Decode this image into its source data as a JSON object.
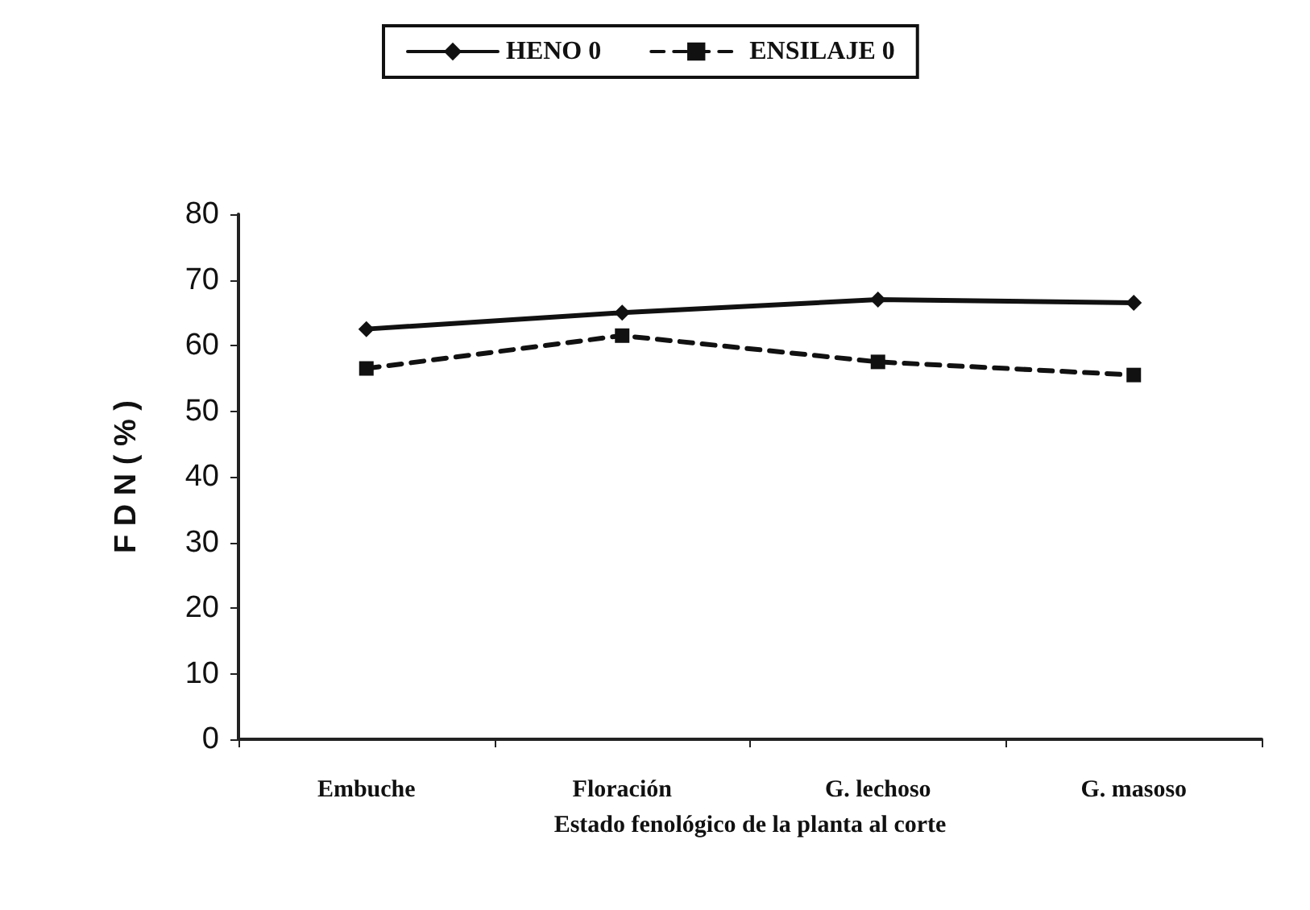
{
  "chart_data": {
    "type": "line",
    "xlabel": "Estado fenológico de la planta al corte",
    "ylabel": "F D N ( % )",
    "categories": [
      "Embuche",
      "Floración",
      "G. lechoso",
      "G. masoso"
    ],
    "series": [
      {
        "name": "HENO 0",
        "color": "#111111",
        "values": [
          62.5,
          65,
          67,
          66.5
        ],
        "line_style": "solid",
        "marker": "diamond"
      },
      {
        "name": "ENSILAJE 0",
        "color": "#111111",
        "values": [
          56.5,
          61.5,
          57.5,
          55.5
        ],
        "line_style": "dashed",
        "marker": "square"
      }
    ],
    "ylim": [
      0,
      80
    ],
    "yticks": [
      0,
      10,
      20,
      30,
      40,
      50,
      60,
      70,
      80
    ],
    "grid": false,
    "legend": "top"
  }
}
